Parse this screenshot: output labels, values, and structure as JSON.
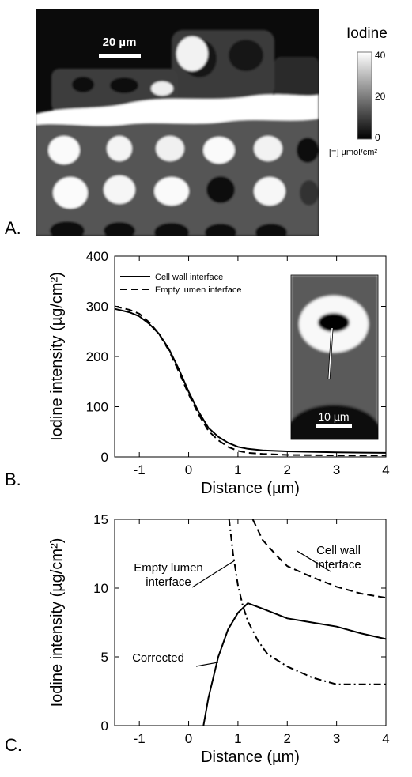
{
  "panels": {
    "a": {
      "letter": "A."
    },
    "b": {
      "letter": "B."
    },
    "c": {
      "letter": "C."
    }
  },
  "image_a": {
    "scalebar_label": "20 µm",
    "colorbar": {
      "title": "Iodine",
      "ticks": [
        "40",
        "20",
        "0"
      ],
      "unit": "[=] µmol/cm²"
    }
  },
  "inset_b": {
    "scalebar_label": "10 µm"
  },
  "colors": {
    "line": "#000000",
    "background": "#ffffff"
  },
  "chart_data": [
    {
      "type": "line",
      "panel": "B",
      "xlabel": "Distance (µm)",
      "ylabel": "Iodine intensity (µg/cm²)",
      "xlim": [
        -1.5,
        4
      ],
      "ylim": [
        0,
        400
      ],
      "xticks": [
        -1,
        0,
        1,
        2,
        3,
        4
      ],
      "yticks": [
        0,
        100,
        200,
        300,
        400
      ],
      "legend": {
        "placement": "top-left",
        "entries": [
          "Cell wall interface",
          "Empty lumen interface"
        ]
      },
      "series": [
        {
          "name": "Cell wall interface",
          "style": "solid",
          "x": [
            -1.5,
            -1.2,
            -1.0,
            -0.8,
            -0.6,
            -0.4,
            -0.2,
            0.0,
            0.2,
            0.4,
            0.6,
            0.8,
            1.0,
            1.2,
            1.5,
            2.0,
            2.5,
            3.0,
            3.5,
            4.0
          ],
          "y": [
            295,
            288,
            280,
            265,
            245,
            215,
            175,
            130,
            90,
            58,
            40,
            28,
            20,
            16,
            13,
            11,
            10,
            9,
            8.5,
            8
          ]
        },
        {
          "name": "Empty lumen interface",
          "style": "dashed",
          "x": [
            -1.5,
            -1.2,
            -1.0,
            -0.8,
            -0.6,
            -0.4,
            -0.2,
            0.0,
            0.2,
            0.4,
            0.6,
            0.8,
            1.0,
            1.2,
            1.5,
            2.0,
            2.5,
            3.0,
            3.5,
            4.0
          ],
          "y": [
            300,
            293,
            285,
            268,
            245,
            212,
            170,
            125,
            85,
            52,
            33,
            20,
            12,
            8,
            6,
            4,
            3.5,
            3,
            3,
            3
          ]
        }
      ]
    },
    {
      "type": "line",
      "panel": "C",
      "xlabel": "Distance (µm)",
      "ylabel": "Iodine intensity (µg/cm²)",
      "xlim": [
        -1.5,
        4
      ],
      "ylim": [
        0,
        15
      ],
      "xticks": [
        -1,
        0,
        1,
        2,
        3,
        4
      ],
      "yticks": [
        0,
        5,
        10,
        15
      ],
      "annotations": [
        "Empty lumen interface",
        "Cell wall interface",
        "Corrected"
      ],
      "series": [
        {
          "name": "Cell wall interface",
          "style": "dashed",
          "x": [
            1.3,
            1.5,
            1.8,
            2.0,
            2.5,
            3.0,
            3.5,
            4.0
          ],
          "y": [
            15,
            13.5,
            12.3,
            11.6,
            10.8,
            10.1,
            9.6,
            9.3
          ]
        },
        {
          "name": "Empty lumen interface",
          "style": "dashdot",
          "x": [
            0.82,
            0.9,
            1.0,
            1.1,
            1.2,
            1.4,
            1.6,
            2.0,
            2.5,
            3.0,
            3.5,
            4.0
          ],
          "y": [
            15,
            12.5,
            10.2,
            8.7,
            7.6,
            6.2,
            5.2,
            4.3,
            3.5,
            3.0,
            3.0,
            3.0
          ]
        },
        {
          "name": "Corrected",
          "style": "solid",
          "x": [
            0.3,
            0.4,
            0.6,
            0.8,
            1.0,
            1.2,
            1.5,
            2.0,
            2.5,
            3.0,
            3.5,
            4.0
          ],
          "y": [
            0,
            2.0,
            5.0,
            7.0,
            8.2,
            8.9,
            8.5,
            7.8,
            7.5,
            7.2,
            6.7,
            6.3
          ]
        }
      ]
    }
  ]
}
